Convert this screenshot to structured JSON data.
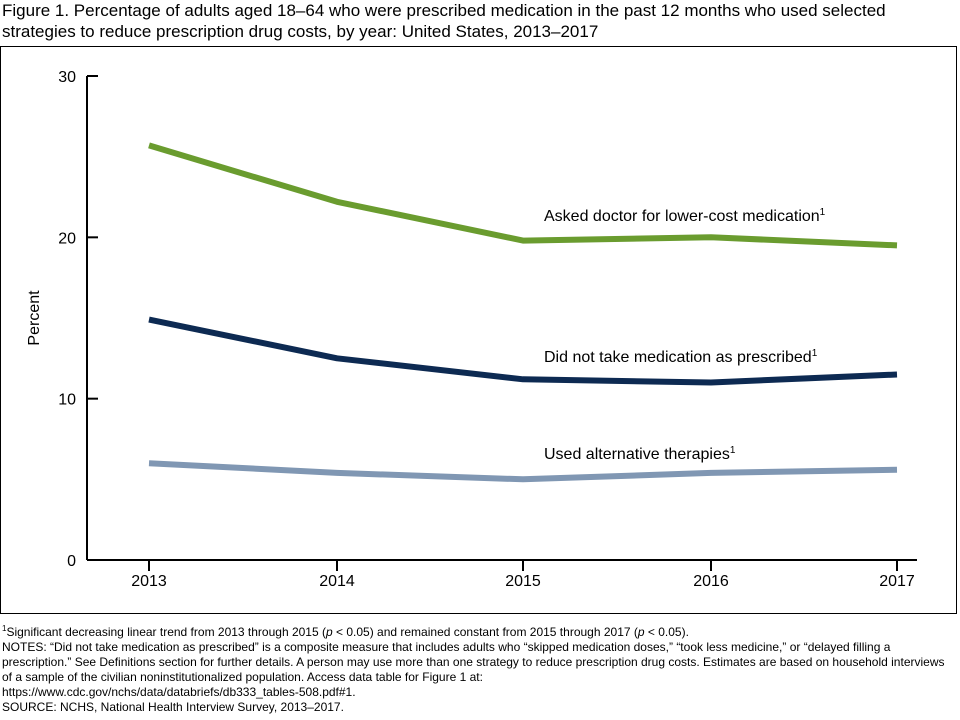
{
  "figure": {
    "title_line1": "Figure 1. Percentage of adults aged 18–64 who were prescribed medication in the past 12 months who used selected",
    "title_line2": "strategies to reduce prescription drug costs, by year: United States, 2013–2017"
  },
  "chart_data": {
    "type": "line",
    "x": [
      "2013",
      "2014",
      "2015",
      "2016",
      "2017"
    ],
    "ylabel": "Percent",
    "ylim": [
      0,
      30
    ],
    "yticks": [
      "0",
      "10",
      "20",
      "30"
    ],
    "grid": false,
    "legend": "inline labels right of lines",
    "series": [
      {
        "name": "Asked doctor for lower-cost medication",
        "footnote": "1",
        "color": "#6a9c2f",
        "values": [
          25.7,
          22.2,
          19.8,
          20.0,
          19.5
        ]
      },
      {
        "name": "Did not take medication as prescribed",
        "footnote": "1",
        "color": "#0d2a52",
        "values": [
          14.9,
          12.5,
          11.2,
          11.0,
          11.5
        ]
      },
      {
        "name": "Used alternative therapies",
        "footnote": "1",
        "color": "#8097b3",
        "values": [
          6.0,
          5.4,
          5.0,
          5.4,
          5.6
        ]
      }
    ]
  },
  "notes": {
    "footnote_mark": "1",
    "footnote_a": "Significant decreasing linear trend from 2013 through 2015 (",
    "footnote_p1": "p",
    "footnote_b": " < 0.05) and remained constant from 2015 through 2017 (",
    "footnote_p2": "p",
    "footnote_c": " < 0.05).",
    "notes_text": "NOTES: “Did not take medication as prescribed” is a composite measure that includes adults who “skipped medication doses,” “took less medicine,” or “delayed filling a prescription.” See Definitions section for further details. A person may use more than one strategy to reduce prescription drug costs. Estimates are based on household interviews of a sample of the civilian noninstitutionalized population. Access data table for Figure 1 at:",
    "url": "https://www.cdc.gov/nchs/data/databriefs/db333_tables-508.pdf#1.",
    "source": "SOURCE: NCHS, National Health Interview Survey, 2013–2017."
  }
}
